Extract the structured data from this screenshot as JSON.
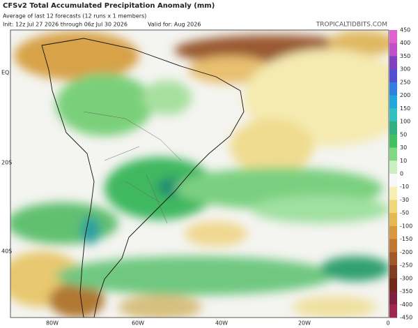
{
  "header": {
    "title": "CFSv2 Total Accumulated Precipitation Anomaly (mm)",
    "subtitle": "Average of last 12 forecasts (12 runs x 1 members)",
    "init": "Init: 12z Jul 27 2026 through 06z Jul 30 2026",
    "valid": "Valid for: Aug 2026",
    "source": "TROPICALTIDBITS.COM"
  },
  "map": {
    "lat_labels": [
      "EQ",
      "20S",
      "40S"
    ],
    "lon_labels": [
      "80W",
      "60W",
      "40W",
      "20W",
      "0"
    ]
  },
  "colorbar": {
    "labels": [
      450,
      400,
      350,
      300,
      250,
      200,
      150,
      100,
      50,
      30,
      10,
      0,
      -10,
      -30,
      -50,
      -100,
      -150,
      -200,
      -250,
      -300,
      -350,
      -400,
      -450
    ]
  }
}
